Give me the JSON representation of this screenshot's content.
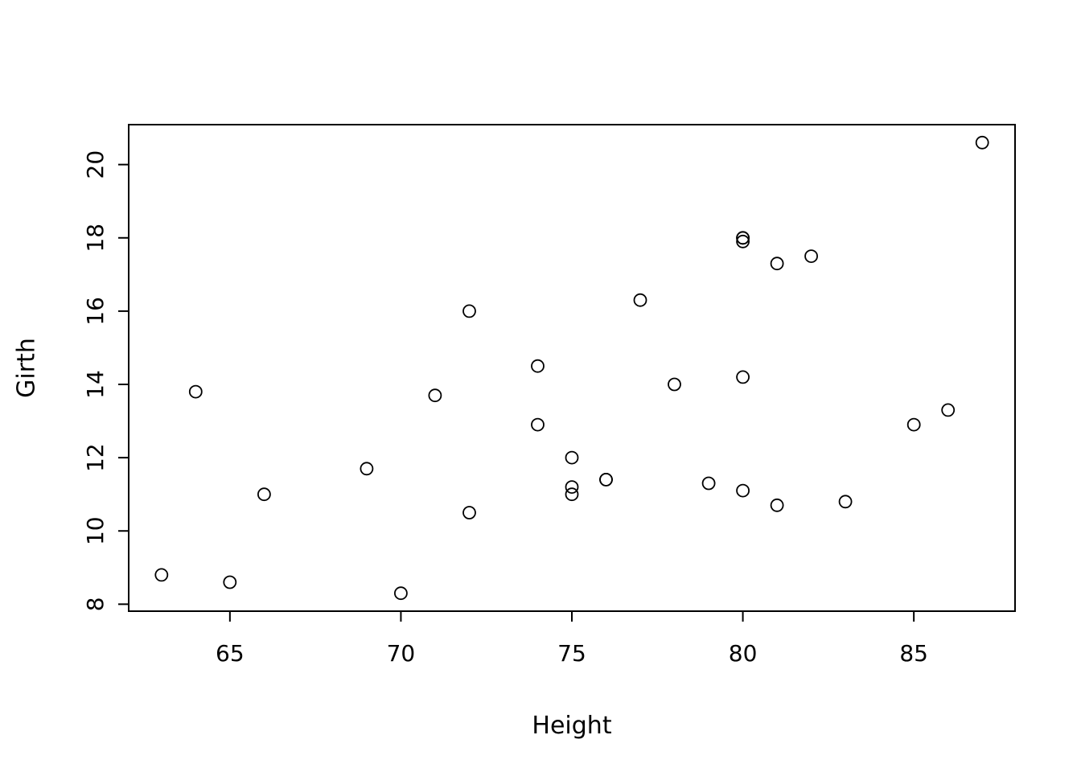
{
  "chart_data": {
    "type": "scatter",
    "title": "",
    "xlabel": "Height",
    "ylabel": "Girth",
    "points": [
      {
        "x": 70,
        "y": 8.3
      },
      {
        "x": 65,
        "y": 8.6
      },
      {
        "x": 63,
        "y": 8.8
      },
      {
        "x": 72,
        "y": 10.5
      },
      {
        "x": 81,
        "y": 10.7
      },
      {
        "x": 83,
        "y": 10.8
      },
      {
        "x": 66,
        "y": 11.0
      },
      {
        "x": 75,
        "y": 11.0
      },
      {
        "x": 80,
        "y": 11.1
      },
      {
        "x": 75,
        "y": 11.2
      },
      {
        "x": 79,
        "y": 11.3
      },
      {
        "x": 76,
        "y": 11.4
      },
      {
        "x": 76,
        "y": 11.4
      },
      {
        "x": 69,
        "y": 11.7
      },
      {
        "x": 75,
        "y": 12.0
      },
      {
        "x": 74,
        "y": 12.9
      },
      {
        "x": 85,
        "y": 12.9
      },
      {
        "x": 86,
        "y": 13.3
      },
      {
        "x": 71,
        "y": 13.7
      },
      {
        "x": 64,
        "y": 13.8
      },
      {
        "x": 78,
        "y": 14.0
      },
      {
        "x": 80,
        "y": 14.2
      },
      {
        "x": 74,
        "y": 14.5
      },
      {
        "x": 72,
        "y": 16.0
      },
      {
        "x": 77,
        "y": 16.3
      },
      {
        "x": 81,
        "y": 17.3
      },
      {
        "x": 82,
        "y": 17.5
      },
      {
        "x": 80,
        "y": 17.9
      },
      {
        "x": 80,
        "y": 18.0
      },
      {
        "x": 80,
        "y": 18.0
      },
      {
        "x": 87,
        "y": 20.6
      }
    ],
    "xticks": [
      65,
      70,
      75,
      80,
      85
    ],
    "yticks": [
      8,
      10,
      12,
      14,
      16,
      18,
      20
    ],
    "xlim": [
      62.04,
      87.96
    ],
    "ylim": [
      7.81,
      21.09
    ],
    "grid": false,
    "legend": null,
    "marker": "open-circle",
    "marker_color": "#000000",
    "axis_color": "#000000",
    "background_color": "#ffffff"
  }
}
